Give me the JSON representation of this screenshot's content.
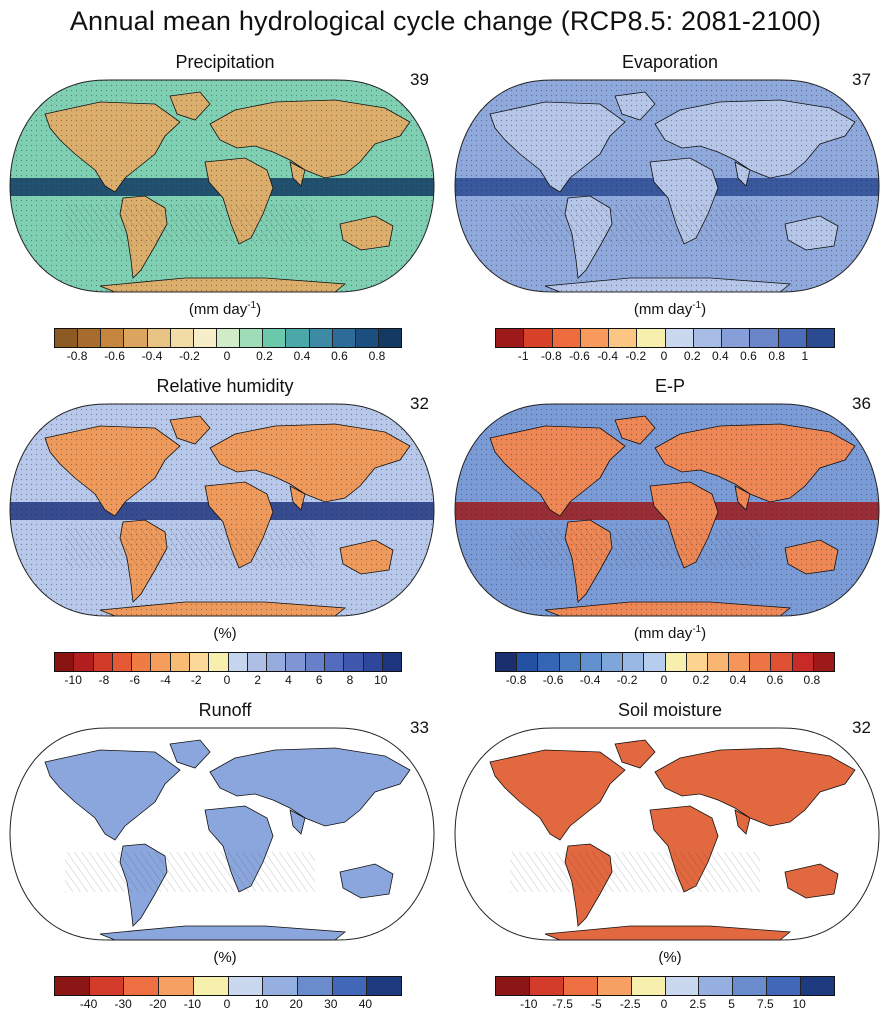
{
  "title": "Annual mean hydrological cycle change (RCP8.5: 2081-2100)",
  "panels": [
    {
      "id": "precipitation",
      "title": "Precipitation",
      "model_count": "39",
      "unit": "(mm day",
      "unit_sup": "-1",
      "unit_tail": ")",
      "colorbar_colors": [
        "#8c5a22",
        "#a86c2e",
        "#c6853f",
        "#dba45f",
        "#e9c384",
        "#f2dca5",
        "#f6eec8",
        "#cfebc8",
        "#9fdcb8",
        "#6cc8ab",
        "#4aa9a8",
        "#3d8aa5",
        "#2d6b98",
        "#1c4f80",
        "#123a63"
      ],
      "tick_labels": [
        "-0.8",
        "-0.6",
        "-0.4",
        "-0.2",
        "0",
        "0.2",
        "0.4",
        "0.6",
        "0.8"
      ],
      "ocean_color": "#7fd0b3",
      "land_color": "#dcae6c",
      "stippled": true
    },
    {
      "id": "evaporation",
      "title": "Evaporation",
      "model_count": "37",
      "unit": "(mm day",
      "unit_sup": "-1",
      "unit_tail": ")",
      "colorbar_colors": [
        "#9e1a1a",
        "#d8402a",
        "#ef6c3e",
        "#f79a5c",
        "#fbc684",
        "#f6efae",
        "#c9d8ef",
        "#a7bde6",
        "#869fd8",
        "#6a86c9",
        "#4d6cb8",
        "#2a4a92"
      ],
      "tick_labels": [
        "-1",
        "-0.8",
        "-0.6",
        "-0.4",
        "-0.2",
        "0",
        "0.2",
        "0.4",
        "0.6",
        "0.8",
        "1"
      ],
      "ocean_color": "#8fa9dc",
      "land_color": "#b5c6e8",
      "stippled": true
    },
    {
      "id": "relative-humidity",
      "title": "Relative humidity",
      "model_count": "32",
      "unit": "(%)",
      "unit_sup": "",
      "unit_tail": "",
      "colorbar_colors": [
        "#8a1414",
        "#b21f1f",
        "#d23a2a",
        "#e35a34",
        "#ef7c43",
        "#f59e5b",
        "#f9bc74",
        "#fcd998",
        "#f6efae",
        "#c6d5ee",
        "#aebfe6",
        "#97aade",
        "#7f95d4",
        "#6880c9",
        "#536cbd",
        "#3f58ae",
        "#2e469c",
        "#1e3580"
      ],
      "tick_labels": [
        "-10",
        "-8",
        "-6",
        "-4",
        "-2",
        "0",
        "2",
        "4",
        "6",
        "8",
        "10"
      ],
      "ocean_color": "#b8c8ea",
      "land_color": "#ee9a5c",
      "stippled": true
    },
    {
      "id": "e-p",
      "title": "E-P",
      "model_count": "36",
      "unit": "(mm day",
      "unit_sup": "-1",
      "unit_tail": ")",
      "colorbar_colors": [
        "#1b2f6e",
        "#2451a3",
        "#3566b5",
        "#4a7cc2",
        "#6391cf",
        "#7ea6db",
        "#99b9e4",
        "#b7cdee",
        "#f6efae",
        "#fbd490",
        "#f9b673",
        "#f4955a",
        "#ec7445",
        "#de5133",
        "#c82b27",
        "#9e1a1a"
      ],
      "tick_labels": [
        "-0.8",
        "-0.6",
        "-0.4",
        "-0.2",
        "0",
        "0.2",
        "0.4",
        "0.6",
        "0.8"
      ],
      "ocean_color": "#7b9bd6",
      "land_color": "#ed8755",
      "stippled": true
    },
    {
      "id": "runoff",
      "title": "Runoff",
      "model_count": "33",
      "unit": "(%)",
      "unit_sup": "",
      "unit_tail": "",
      "colorbar_colors": [
        "#8c1616",
        "#d33b2a",
        "#ee6f42",
        "#f6a064",
        "#f6efae",
        "#c9d8ef",
        "#95b0e0",
        "#6a8ccd",
        "#4266b8",
        "#1e3b80"
      ],
      "tick_labels": [
        "-40",
        "-30",
        "-20",
        "-10",
        "0",
        "10",
        "20",
        "30",
        "40"
      ],
      "ocean_color": "#ffffff",
      "land_color": "#8aa6dd",
      "stippled": false
    },
    {
      "id": "soil-moisture",
      "title": "Soil moisture",
      "model_count": "32",
      "unit": "(%)",
      "unit_sup": "",
      "unit_tail": "",
      "colorbar_colors": [
        "#8c1616",
        "#d33b2a",
        "#ee6f42",
        "#f6a064",
        "#f6efae",
        "#c9d8ef",
        "#95b0e0",
        "#6a8ccd",
        "#4266b8",
        "#1e3b80"
      ],
      "tick_labels": [
        "-10",
        "-7.5",
        "-5",
        "-2.5",
        "0",
        "2.5",
        "5",
        "7.5",
        "10"
      ],
      "ocean_color": "#ffffff",
      "land_color": "#e2683f",
      "stippled": false
    }
  ]
}
